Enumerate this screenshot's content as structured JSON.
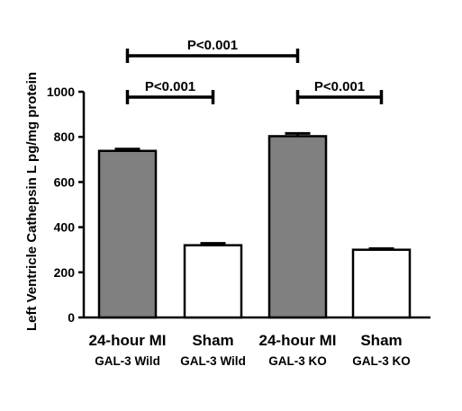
{
  "chart_data": {
    "type": "bar",
    "ylabel": "Left  Ventricle Cathepsin L pg/mg protein",
    "ylim": [
      0,
      1000
    ],
    "yticks": [
      0,
      200,
      400,
      600,
      800,
      1000
    ],
    "grid": false,
    "categories": [
      {
        "line1": "24-hour MI",
        "line2": "GAL-3 Wild",
        "fill": "#808080"
      },
      {
        "line1": "Sham",
        "line2": "GAL-3 Wild",
        "fill": "#ffffff"
      },
      {
        "line1": "24-hour MI",
        "line2": "GAL-3 KO",
        "fill": "#808080"
      },
      {
        "line1": "Sham",
        "line2": "GAL-3 KO",
        "fill": "#ffffff"
      }
    ],
    "values": [
      738,
      320,
      803,
      300
    ],
    "errors": [
      8,
      8,
      12,
      5
    ],
    "significance": [
      {
        "from": 0,
        "to": 1,
        "label": "P<0.001",
        "level": 1
      },
      {
        "from": 2,
        "to": 3,
        "label": "P<0.001",
        "level": 1
      },
      {
        "from": 0,
        "to": 2,
        "label": "P<0.001",
        "level": 2
      }
    ]
  }
}
